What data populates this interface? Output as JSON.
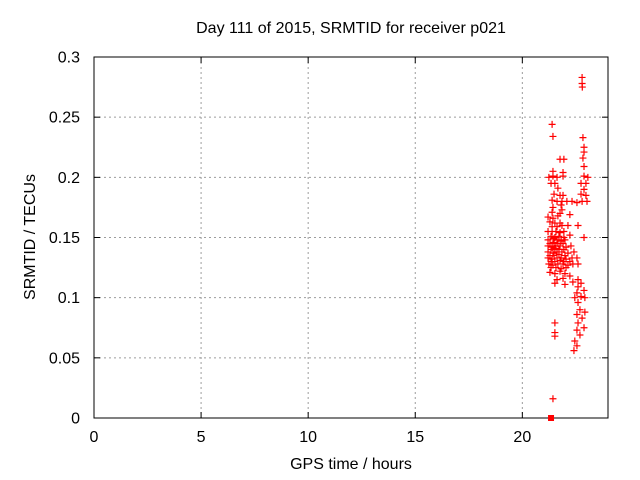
{
  "figure": {
    "background": "#ffffff",
    "text_color": "#000000",
    "grid_color": "#9c9c9c",
    "border_color": "#000000"
  },
  "chart_data": {
    "type": "scatter",
    "title": "Day 111 of 2015, SRMTID for receiver p021",
    "xlabel": "GPS time / hours",
    "ylabel": "SRMTID / TECUs",
    "xlim": [
      0,
      24
    ],
    "ylim": [
      0,
      0.3
    ],
    "xticks": [
      0,
      5,
      10,
      15,
      20
    ],
    "xtick_labels": [
      "0",
      "5",
      "10",
      "15",
      "20"
    ],
    "yticks": [
      0,
      0.05,
      0.1,
      0.15,
      0.2,
      0.25,
      0.3
    ],
    "ytick_labels": [
      "0",
      "0.05",
      "0.1",
      "0.15",
      "0.2",
      "0.25",
      "0.3"
    ],
    "grid": "dashed-major",
    "legend_position": "none",
    "marker_color": "#ff0000",
    "series": [
      {
        "name": "srmtid",
        "marker": "plus",
        "color": "#ff0000",
        "points": [
          [
            22.79,
            0.283
          ],
          [
            22.79,
            0.278
          ],
          [
            22.8,
            0.275
          ],
          [
            21.39,
            0.244
          ],
          [
            21.43,
            0.234
          ],
          [
            22.83,
            0.233
          ],
          [
            22.88,
            0.225
          ],
          [
            22.88,
            0.221
          ],
          [
            22.83,
            0.216
          ],
          [
            22.88,
            0.209
          ],
          [
            21.76,
            0.215
          ],
          [
            21.94,
            0.215
          ],
          [
            21.43,
            0.205
          ],
          [
            21.9,
            0.204
          ],
          [
            21.24,
            0.2
          ],
          [
            21.43,
            0.201
          ],
          [
            21.62,
            0.2
          ],
          [
            21.9,
            0.201
          ],
          [
            22.88,
            0.201
          ],
          [
            23.06,
            0.2
          ],
          [
            21.34,
            0.195
          ],
          [
            21.52,
            0.195
          ],
          [
            22.74,
            0.195
          ],
          [
            21.66,
            0.191
          ],
          [
            22.88,
            0.19
          ],
          [
            22.97,
            0.195
          ],
          [
            21.48,
            0.186
          ],
          [
            21.76,
            0.185
          ],
          [
            21.9,
            0.185
          ],
          [
            22.74,
            0.186
          ],
          [
            22.97,
            0.185
          ],
          [
            21.39,
            0.181
          ],
          [
            21.62,
            0.18
          ],
          [
            21.85,
            0.18
          ],
          [
            22.08,
            0.18
          ],
          [
            22.32,
            0.18
          ],
          [
            22.55,
            0.179
          ],
          [
            22.79,
            0.18
          ],
          [
            23.02,
            0.18
          ],
          [
            21.81,
            0.177
          ],
          [
            21.85,
            0.173
          ],
          [
            21.76,
            0.17
          ],
          [
            21.43,
            0.175
          ],
          [
            21.39,
            0.171
          ],
          [
            21.2,
            0.167
          ],
          [
            21.43,
            0.166
          ],
          [
            21.66,
            0.168
          ],
          [
            22.22,
            0.169
          ],
          [
            21.29,
            0.163
          ],
          [
            21.52,
            0.162
          ],
          [
            21.76,
            0.162
          ],
          [
            21.39,
            0.159
          ],
          [
            21.62,
            0.159
          ],
          [
            21.85,
            0.16
          ],
          [
            22.13,
            0.16
          ],
          [
            22.6,
            0.16
          ],
          [
            21.2,
            0.155
          ],
          [
            21.39,
            0.155
          ],
          [
            21.57,
            0.155
          ],
          [
            21.76,
            0.154
          ],
          [
            21.94,
            0.155
          ],
          [
            21.34,
            0.151
          ],
          [
            21.52,
            0.15
          ],
          [
            21.71,
            0.151
          ],
          [
            21.94,
            0.15
          ],
          [
            22.22,
            0.152
          ],
          [
            22.88,
            0.15
          ],
          [
            21.2,
            0.148
          ],
          [
            21.43,
            0.149
          ],
          [
            21.62,
            0.148
          ],
          [
            21.81,
            0.147
          ],
          [
            21.99,
            0.148
          ],
          [
            21.29,
            0.145
          ],
          [
            21.48,
            0.146
          ],
          [
            21.66,
            0.145
          ],
          [
            21.9,
            0.145
          ],
          [
            21.2,
            0.143
          ],
          [
            21.39,
            0.142
          ],
          [
            21.57,
            0.143
          ],
          [
            21.76,
            0.143
          ],
          [
            22.04,
            0.142
          ],
          [
            22.27,
            0.143
          ],
          [
            21.34,
            0.14
          ],
          [
            21.52,
            0.141
          ],
          [
            21.71,
            0.14
          ],
          [
            21.94,
            0.14
          ],
          [
            21.2,
            0.138
          ],
          [
            21.43,
            0.137
          ],
          [
            21.62,
            0.138
          ],
          [
            21.85,
            0.138
          ],
          [
            22.13,
            0.137
          ],
          [
            22.41,
            0.138
          ],
          [
            21.29,
            0.135
          ],
          [
            21.48,
            0.135
          ],
          [
            21.71,
            0.136
          ],
          [
            21.99,
            0.135
          ],
          [
            21.2,
            0.133
          ],
          [
            21.39,
            0.132
          ],
          [
            21.62,
            0.133
          ],
          [
            21.81,
            0.133
          ],
          [
            22.04,
            0.132
          ],
          [
            22.32,
            0.133
          ],
          [
            22.55,
            0.133
          ],
          [
            21.34,
            0.13
          ],
          [
            21.52,
            0.13
          ],
          [
            21.76,
            0.131
          ],
          [
            21.94,
            0.13
          ],
          [
            22.22,
            0.13
          ],
          [
            21.24,
            0.128
          ],
          [
            21.43,
            0.127
          ],
          [
            21.66,
            0.128
          ],
          [
            21.9,
            0.128
          ],
          [
            22.13,
            0.127
          ],
          [
            22.36,
            0.128
          ],
          [
            22.6,
            0.128
          ],
          [
            21.34,
            0.125
          ],
          [
            21.57,
            0.125
          ],
          [
            21.81,
            0.124
          ],
          [
            22.04,
            0.125
          ],
          [
            21.29,
            0.121
          ],
          [
            21.52,
            0.12
          ],
          [
            21.76,
            0.122
          ],
          [
            21.99,
            0.12
          ],
          [
            22.22,
            0.118
          ],
          [
            21.9,
            0.116
          ],
          [
            21.62,
            0.115
          ],
          [
            22.6,
            0.115
          ],
          [
            21.52,
            0.112
          ],
          [
            21.99,
            0.111
          ],
          [
            22.36,
            0.113
          ],
          [
            22.6,
            0.109
          ],
          [
            22.74,
            0.112
          ],
          [
            22.88,
            0.106
          ],
          [
            22.55,
            0.104
          ],
          [
            22.74,
            0.101
          ],
          [
            22.45,
            0.1
          ],
          [
            22.92,
            0.1
          ],
          [
            22.6,
            0.096
          ],
          [
            22.69,
            0.09
          ],
          [
            22.92,
            0.088
          ],
          [
            22.55,
            0.086
          ],
          [
            22.79,
            0.083
          ],
          [
            22.6,
            0.079
          ],
          [
            21.52,
            0.079
          ],
          [
            21.52,
            0.071
          ],
          [
            21.52,
            0.068
          ],
          [
            22.55,
            0.073
          ],
          [
            22.88,
            0.075
          ],
          [
            22.69,
            0.069
          ],
          [
            22.45,
            0.064
          ],
          [
            22.55,
            0.06
          ],
          [
            22.41,
            0.056
          ],
          [
            21.43,
            0.016
          ]
        ]
      },
      {
        "name": "zero-flag",
        "marker": "filled-square",
        "color": "#ff0000",
        "points": [
          [
            21.34,
            0.0
          ]
        ]
      }
    ]
  }
}
